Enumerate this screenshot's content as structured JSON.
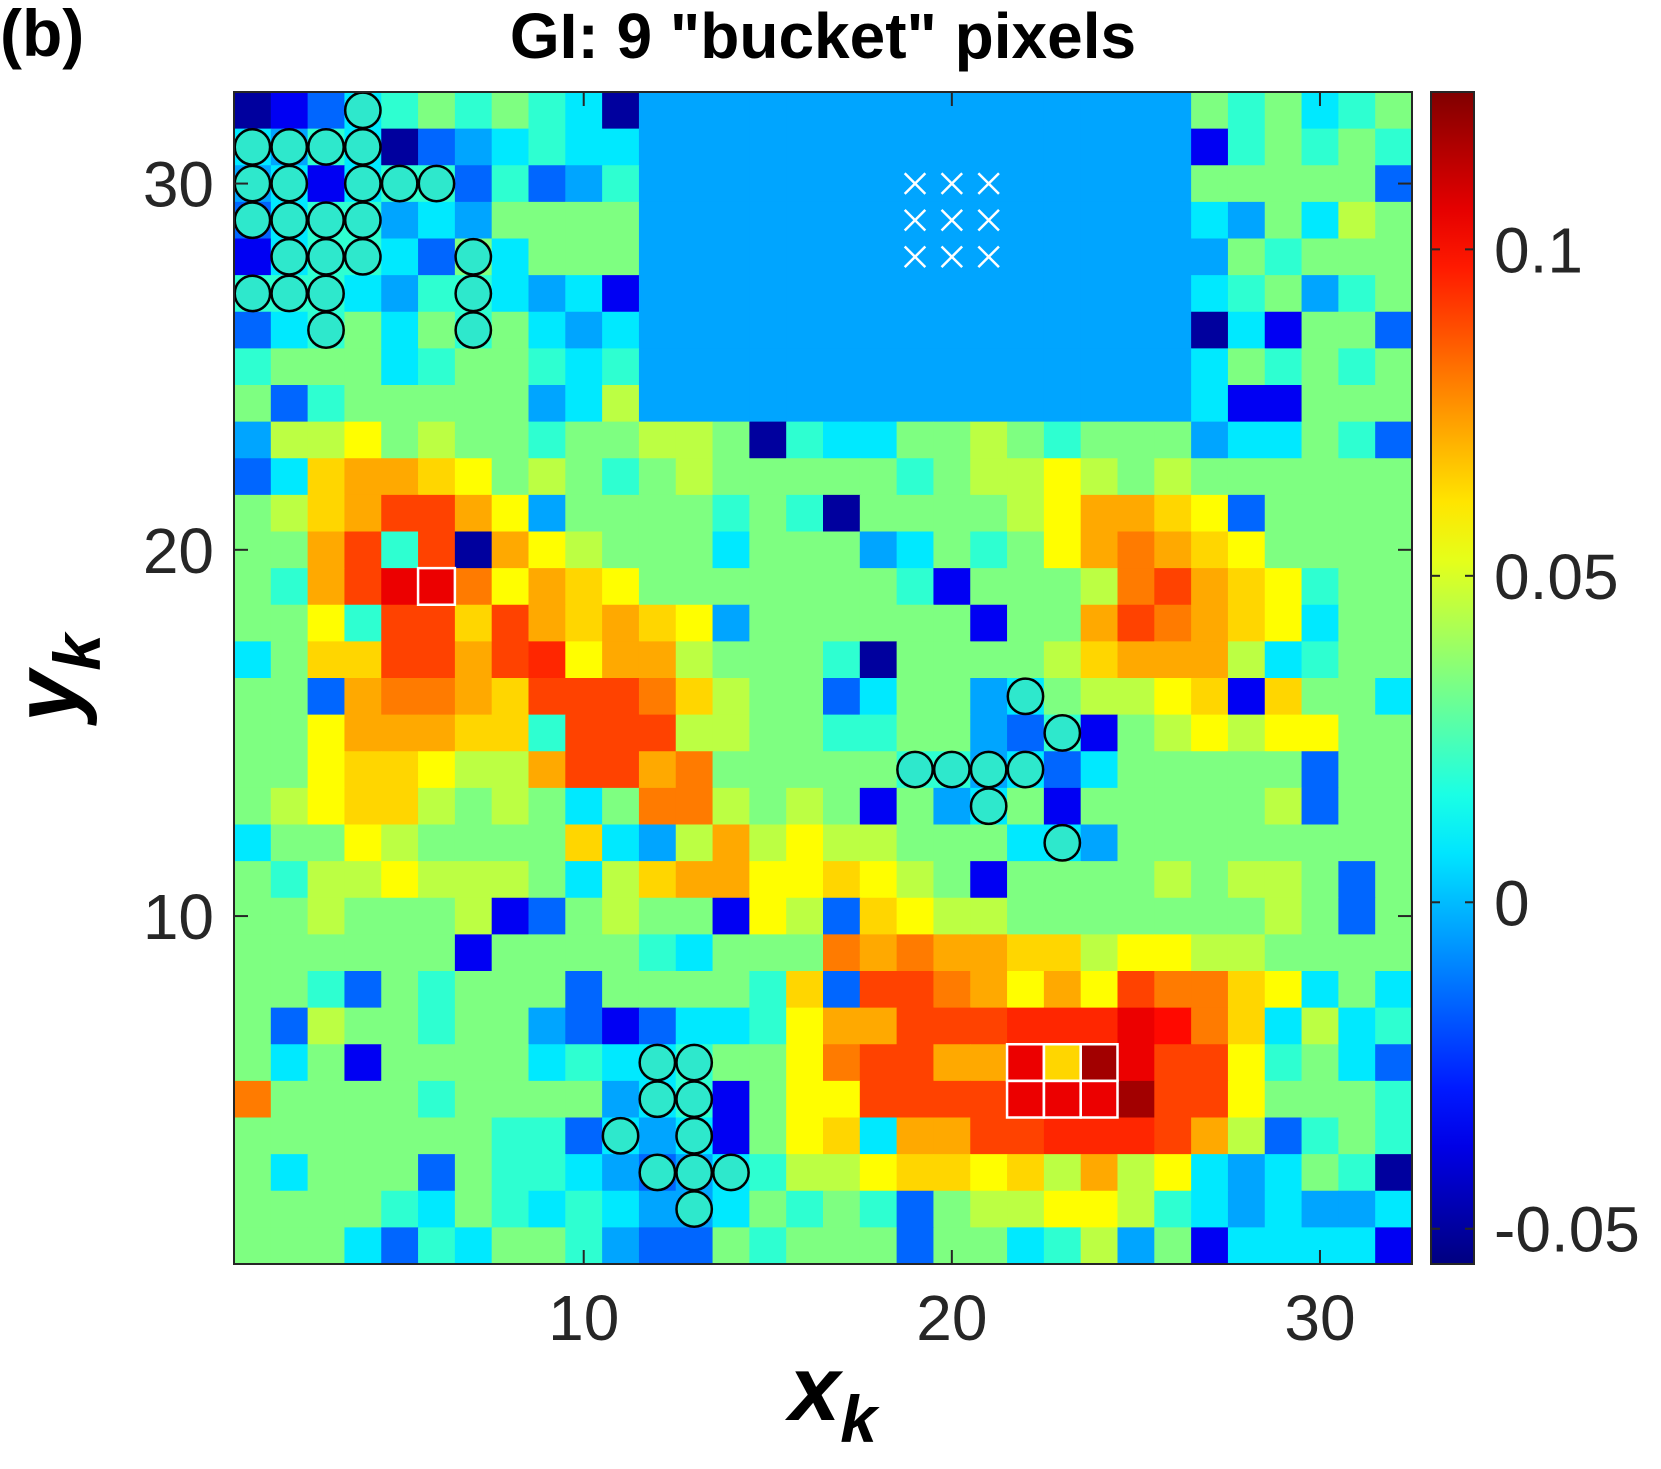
{
  "panel_label": "(b)",
  "chart_data": {
    "type": "heatmap",
    "title": "GI: 9 \"bucket\" pixels",
    "xlabel": "x",
    "xlabel_sub": "k",
    "ylabel": "y",
    "ylabel_sub": "k",
    "xlim": [
      0.5,
      32.5
    ],
    "ylim": [
      0.5,
      32.5
    ],
    "xticks": [
      10,
      20,
      30
    ],
    "yticks": [
      10,
      20,
      30
    ],
    "clim": [
      -0.0554,
      0.1241
    ],
    "cticks": [
      -0.05,
      0,
      0.05,
      0.1
    ],
    "colormap": "jet",
    "x": [
      1,
      2,
      3,
      4,
      5,
      6,
      7,
      8,
      9,
      10,
      11,
      12,
      13,
      14,
      15,
      16,
      17,
      18,
      19,
      20,
      21,
      22,
      23,
      24,
      25,
      26,
      27,
      28,
      29,
      30,
      31,
      32
    ],
    "y": [
      32,
      31,
      30,
      29,
      28,
      27,
      26,
      25,
      24,
      23,
      22,
      21,
      20,
      19,
      18,
      17,
      16,
      15,
      14,
      13,
      12,
      11,
      10,
      9,
      8,
      7,
      6,
      5,
      4,
      3,
      2,
      1
    ],
    "z": [
      [
        -0.05,
        -0.035,
        -0.015,
        0.008,
        0.02,
        0.034,
        0.02,
        0.034,
        0.02,
        0.008,
        -0.05,
        -0.004,
        -0.004,
        -0.004,
        -0.004,
        -0.004,
        -0.004,
        -0.004,
        -0.004,
        -0.004,
        -0.004,
        -0.004,
        -0.004,
        -0.004,
        -0.004,
        -0.004,
        0.034,
        0.02,
        0.034,
        0.008,
        0.02,
        0.034
      ],
      [
        0.008,
        -0.004,
        0.02,
        0.008,
        -0.05,
        -0.015,
        -0.004,
        0.008,
        0.02,
        0.008,
        0.008,
        -0.004,
        -0.004,
        -0.004,
        -0.004,
        -0.004,
        -0.004,
        -0.004,
        -0.004,
        -0.004,
        -0.004,
        -0.004,
        -0.004,
        -0.004,
        -0.004,
        -0.004,
        -0.035,
        0.02,
        0.034,
        0.02,
        0.034,
        0.02
      ],
      [
        -0.004,
        0.008,
        -0.035,
        0.008,
        0.02,
        0.02,
        -0.015,
        0.02,
        -0.015,
        -0.004,
        0.02,
        -0.004,
        -0.004,
        -0.004,
        -0.004,
        -0.004,
        -0.004,
        -0.004,
        -0.004,
        -0.004,
        -0.004,
        -0.004,
        -0.004,
        -0.004,
        -0.004,
        -0.004,
        0.034,
        0.034,
        0.034,
        0.034,
        0.034,
        -0.015
      ],
      [
        -0.015,
        0.008,
        0.02,
        0.02,
        -0.004,
        0.008,
        -0.004,
        0.034,
        0.034,
        0.034,
        0.034,
        -0.004,
        -0.004,
        -0.004,
        -0.004,
        -0.004,
        -0.004,
        -0.004,
        -0.004,
        -0.004,
        -0.004,
        -0.004,
        -0.004,
        -0.004,
        -0.004,
        -0.004,
        0.008,
        -0.004,
        0.034,
        0.008,
        0.045,
        0.034
      ],
      [
        -0.035,
        0.008,
        0.02,
        0.02,
        0.008,
        -0.015,
        0.034,
        0.008,
        0.034,
        0.034,
        0.034,
        -0.004,
        -0.004,
        -0.004,
        -0.004,
        -0.004,
        -0.004,
        -0.004,
        -0.004,
        -0.004,
        -0.004,
        -0.004,
        -0.004,
        -0.004,
        -0.004,
        -0.004,
        -0.004,
        0.034,
        0.02,
        0.034,
        0.034,
        0.034
      ],
      [
        0.02,
        0.02,
        0.02,
        0.008,
        -0.004,
        0.02,
        0.02,
        0.008,
        -0.004,
        0.008,
        -0.035,
        -0.004,
        -0.004,
        -0.004,
        -0.004,
        -0.004,
        -0.004,
        -0.004,
        -0.004,
        -0.004,
        -0.004,
        -0.004,
        -0.004,
        -0.004,
        -0.004,
        -0.004,
        0.008,
        0.02,
        0.034,
        -0.004,
        0.02,
        0.034
      ],
      [
        -0.015,
        0.008,
        0.02,
        0.034,
        0.008,
        0.034,
        0.02,
        0.034,
        0.008,
        -0.004,
        0.008,
        -0.004,
        -0.004,
        -0.004,
        -0.004,
        -0.004,
        -0.004,
        -0.004,
        -0.004,
        -0.004,
        -0.004,
        -0.004,
        -0.004,
        -0.004,
        -0.004,
        -0.004,
        -0.05,
        0.008,
        -0.035,
        0.034,
        0.034,
        -0.015
      ],
      [
        0.02,
        0.034,
        0.034,
        0.034,
        0.008,
        0.02,
        0.034,
        0.034,
        0.02,
        0.008,
        0.02,
        -0.004,
        -0.004,
        -0.004,
        -0.004,
        -0.004,
        -0.004,
        -0.004,
        -0.004,
        -0.004,
        -0.004,
        -0.004,
        -0.004,
        -0.004,
        -0.004,
        -0.004,
        0.008,
        0.034,
        0.02,
        0.034,
        0.02,
        0.034
      ],
      [
        0.034,
        -0.015,
        0.02,
        0.034,
        0.034,
        0.034,
        0.034,
        0.034,
        -0.004,
        0.008,
        0.045,
        -0.004,
        -0.004,
        -0.004,
        -0.004,
        -0.004,
        -0.004,
        -0.004,
        -0.004,
        -0.004,
        -0.004,
        -0.004,
        -0.004,
        -0.004,
        -0.004,
        -0.004,
        0.008,
        -0.035,
        -0.035,
        0.034,
        0.034,
        0.034
      ],
      [
        -0.004,
        0.045,
        0.045,
        0.057,
        0.034,
        0.045,
        0.034,
        0.034,
        0.02,
        0.034,
        0.034,
        0.045,
        0.045,
        0.034,
        -0.05,
        0.02,
        0.008,
        0.008,
        0.034,
        0.034,
        0.045,
        0.034,
        0.02,
        0.034,
        0.034,
        0.034,
        -0.004,
        0.008,
        0.008,
        0.034,
        0.02,
        -0.015
      ],
      [
        -0.015,
        0.008,
        0.064,
        0.072,
        0.072,
        0.064,
        0.057,
        0.034,
        0.045,
        0.034,
        0.02,
        0.034,
        0.045,
        0.034,
        0.034,
        0.034,
        0.034,
        0.034,
        0.02,
        0.034,
        0.045,
        0.045,
        0.057,
        0.045,
        0.034,
        0.045,
        0.034,
        0.034,
        0.034,
        0.034,
        0.034,
        0.034
      ],
      [
        0.034,
        0.045,
        0.064,
        0.072,
        0.09,
        0.09,
        0.072,
        0.057,
        -0.004,
        0.034,
        0.034,
        0.034,
        0.034,
        0.02,
        0.034,
        0.02,
        -0.05,
        0.034,
        0.034,
        0.034,
        0.034,
        0.045,
        0.057,
        0.072,
        0.072,
        0.064,
        0.057,
        -0.015,
        0.034,
        0.034,
        0.034,
        0.034
      ],
      [
        0.034,
        0.034,
        0.072,
        0.09,
        0.02,
        0.09,
        -0.05,
        0.072,
        0.057,
        0.045,
        0.034,
        0.034,
        0.034,
        0.008,
        0.034,
        0.034,
        0.034,
        -0.004,
        0.008,
        0.034,
        0.02,
        0.034,
        0.057,
        0.072,
        0.08,
        0.072,
        0.064,
        0.057,
        0.034,
        0.034,
        0.034,
        0.034
      ],
      [
        0.034,
        0.02,
        0.072,
        0.09,
        0.105,
        0.105,
        0.08,
        0.057,
        0.072,
        0.064,
        0.057,
        0.034,
        0.034,
        0.034,
        0.034,
        0.034,
        0.034,
        0.034,
        0.02,
        -0.035,
        0.034,
        0.034,
        0.034,
        0.045,
        0.08,
        0.09,
        0.072,
        0.064,
        0.057,
        0.02,
        0.034,
        0.034
      ],
      [
        0.034,
        0.034,
        0.057,
        0.02,
        0.09,
        0.09,
        0.064,
        0.09,
        0.072,
        0.064,
        0.072,
        0.064,
        0.057,
        -0.004,
        0.034,
        0.034,
        0.034,
        0.034,
        0.034,
        0.034,
        -0.035,
        0.034,
        0.034,
        0.072,
        0.09,
        0.08,
        0.072,
        0.064,
        0.057,
        0.008,
        0.034,
        0.034
      ],
      [
        0.008,
        0.034,
        0.064,
        0.064,
        0.09,
        0.09,
        0.072,
        0.09,
        0.095,
        0.057,
        0.072,
        0.072,
        0.045,
        0.034,
        0.034,
        0.034,
        0.02,
        -0.05,
        0.034,
        0.034,
        0.034,
        0.034,
        0.045,
        0.064,
        0.072,
        0.072,
        0.072,
        0.045,
        0.008,
        0.02,
        0.034,
        0.034
      ],
      [
        0.034,
        0.034,
        -0.015,
        0.072,
        0.08,
        0.08,
        0.072,
        0.064,
        0.09,
        0.09,
        0.09,
        0.08,
        0.064,
        0.045,
        0.034,
        0.034,
        -0.015,
        0.008,
        0.034,
        0.034,
        -0.004,
        0.008,
        0.034,
        0.045,
        0.045,
        0.057,
        0.064,
        -0.035,
        0.064,
        0.034,
        0.034,
        0.008
      ],
      [
        0.034,
        0.034,
        0.057,
        0.072,
        0.072,
        0.072,
        0.064,
        0.064,
        0.02,
        0.09,
        0.09,
        0.09,
        0.045,
        0.045,
        0.034,
        0.034,
        0.02,
        0.02,
        0.034,
        0.034,
        -0.004,
        -0.015,
        0.02,
        -0.035,
        0.034,
        0.045,
        0.057,
        0.045,
        0.057,
        0.057,
        0.034,
        0.034
      ],
      [
        0.034,
        0.034,
        0.057,
        0.064,
        0.064,
        0.057,
        0.045,
        0.045,
        0.072,
        0.09,
        0.09,
        0.072,
        0.08,
        0.034,
        0.034,
        0.034,
        0.034,
        0.034,
        0.02,
        0.02,
        -0.004,
        0.008,
        -0.015,
        0.008,
        0.034,
        0.034,
        0.034,
        0.034,
        0.034,
        -0.015,
        0.034,
        0.034
      ],
      [
        0.034,
        0.045,
        0.057,
        0.064,
        0.064,
        0.045,
        0.034,
        0.045,
        0.034,
        0.008,
        0.034,
        0.08,
        0.08,
        0.045,
        0.034,
        0.045,
        0.034,
        -0.035,
        0.034,
        -0.004,
        0.008,
        0.034,
        -0.035,
        0.034,
        0.034,
        0.034,
        0.034,
        0.034,
        0.045,
        -0.015,
        0.034,
        0.034
      ],
      [
        0.008,
        0.034,
        0.034,
        0.057,
        0.045,
        0.034,
        0.034,
        0.034,
        0.034,
        0.064,
        0.008,
        -0.004,
        0.045,
        0.072,
        0.045,
        0.057,
        0.045,
        0.045,
        0.034,
        0.034,
        0.034,
        0.008,
        0.008,
        -0.004,
        0.034,
        0.034,
        0.034,
        0.034,
        0.034,
        0.034,
        0.034,
        0.034
      ],
      [
        0.034,
        0.02,
        0.045,
        0.045,
        0.057,
        0.045,
        0.045,
        0.045,
        0.034,
        0.008,
        0.045,
        0.064,
        0.072,
        0.072,
        0.057,
        0.057,
        0.064,
        0.057,
        0.045,
        0.034,
        -0.035,
        0.034,
        0.034,
        0.034,
        0.034,
        0.045,
        0.034,
        0.045,
        0.045,
        0.034,
        -0.015,
        0.034
      ],
      [
        0.034,
        0.034,
        0.045,
        0.034,
        0.034,
        0.034,
        0.045,
        -0.035,
        -0.015,
        0.034,
        0.045,
        0.034,
        0.034,
        -0.035,
        0.057,
        0.045,
        -0.015,
        0.064,
        0.057,
        0.045,
        0.045,
        0.034,
        0.034,
        0.034,
        0.034,
        0.034,
        0.034,
        0.034,
        0.045,
        0.034,
        -0.015,
        0.034
      ],
      [
        0.034,
        0.034,
        0.034,
        0.034,
        0.034,
        0.034,
        -0.035,
        0.034,
        0.034,
        0.034,
        0.034,
        0.02,
        0.008,
        0.034,
        0.034,
        0.034,
        0.08,
        0.072,
        0.08,
        0.072,
        0.072,
        0.064,
        0.064,
        0.045,
        0.057,
        0.057,
        0.045,
        0.045,
        0.034,
        0.034,
        0.034,
        0.034
      ],
      [
        0.034,
        0.034,
        0.02,
        -0.015,
        0.034,
        0.02,
        0.034,
        0.034,
        0.034,
        -0.015,
        0.034,
        0.034,
        0.034,
        0.034,
        0.02,
        0.064,
        -0.015,
        0.09,
        0.09,
        0.08,
        0.072,
        0.057,
        0.072,
        0.057,
        0.09,
        0.08,
        0.08,
        0.064,
        0.057,
        0.008,
        0.034,
        0.008
      ],
      [
        0.034,
        -0.015,
        0.045,
        0.034,
        0.034,
        0.02,
        0.034,
        0.034,
        -0.004,
        -0.015,
        -0.035,
        -0.015,
        0.008,
        0.008,
        0.02,
        0.057,
        0.072,
        0.072,
        0.09,
        0.09,
        0.09,
        0.095,
        0.095,
        0.095,
        0.105,
        0.1,
        0.08,
        0.064,
        0.008,
        0.045,
        0.008,
        0.02
      ],
      [
        0.034,
        0.008,
        0.034,
        -0.035,
        0.034,
        0.034,
        0.034,
        0.034,
        0.008,
        0.02,
        0.008,
        0.008,
        0.02,
        0.034,
        0.034,
        0.057,
        0.08,
        0.09,
        0.09,
        0.072,
        0.072,
        0.105,
        0.064,
        0.118,
        0.105,
        0.09,
        0.09,
        0.057,
        0.02,
        0.034,
        0.008,
        -0.015
      ],
      [
        0.08,
        0.034,
        0.034,
        0.034,
        0.034,
        0.02,
        0.034,
        0.034,
        0.034,
        0.034,
        -0.004,
        0.008,
        0.02,
        -0.035,
        0.034,
        0.057,
        0.057,
        0.09,
        0.09,
        0.09,
        0.09,
        0.105,
        0.105,
        0.105,
        0.118,
        0.09,
        0.09,
        0.057,
        0.034,
        0.034,
        0.034,
        0.02
      ],
      [
        0.034,
        0.034,
        0.034,
        0.034,
        0.034,
        0.034,
        0.034,
        0.02,
        0.02,
        -0.015,
        0.008,
        -0.004,
        0.008,
        -0.035,
        0.034,
        0.057,
        0.064,
        0.008,
        0.072,
        0.072,
        0.09,
        0.09,
        0.095,
        0.095,
        0.095,
        0.09,
        0.072,
        0.045,
        -0.015,
        0.02,
        0.034,
        0.02
      ],
      [
        0.034,
        0.008,
        0.034,
        0.034,
        0.034,
        -0.015,
        0.034,
        0.02,
        0.02,
        0.008,
        -0.004,
        -0.015,
        -0.004,
        0.008,
        0.02,
        0.045,
        0.045,
        0.057,
        0.064,
        0.064,
        0.057,
        0.064,
        0.045,
        0.072,
        0.045,
        0.057,
        0.008,
        -0.004,
        0.008,
        0.034,
        0.02,
        -0.05
      ],
      [
        0.034,
        0.034,
        0.034,
        0.034,
        0.02,
        0.008,
        0.034,
        0.02,
        0.008,
        0.02,
        0.008,
        -0.004,
        -0.004,
        0.008,
        0.034,
        0.02,
        0.034,
        0.02,
        -0.015,
        0.034,
        0.045,
        0.045,
        0.057,
        0.057,
        0.045,
        0.02,
        0.008,
        -0.004,
        0.008,
        -0.004,
        -0.004,
        0.008
      ],
      [
        0.034,
        0.034,
        0.034,
        0.008,
        -0.015,
        0.02,
        0.008,
        0.034,
        0.034,
        0.02,
        -0.004,
        -0.015,
        -0.015,
        0.034,
        0.02,
        0.034,
        0.034,
        0.034,
        -0.015,
        0.034,
        0.034,
        0.008,
        0.02,
        0.045,
        -0.004,
        0.034,
        -0.035,
        0.008,
        0.008,
        0.008,
        0.008,
        -0.035
      ]
    ],
    "circles": [
      [
        4,
        32
      ],
      [
        1,
        31
      ],
      [
        2,
        31
      ],
      [
        3,
        31
      ],
      [
        4,
        31
      ],
      [
        1,
        30
      ],
      [
        2,
        30
      ],
      [
        4,
        30
      ],
      [
        5,
        30
      ],
      [
        6,
        30
      ],
      [
        1,
        29
      ],
      [
        2,
        29
      ],
      [
        3,
        29
      ],
      [
        4,
        29
      ],
      [
        2,
        28
      ],
      [
        3,
        28
      ],
      [
        4,
        28
      ],
      [
        7,
        28
      ],
      [
        1,
        27
      ],
      [
        2,
        27
      ],
      [
        3,
        27
      ],
      [
        7,
        27
      ],
      [
        3,
        26
      ],
      [
        7,
        26
      ],
      [
        22,
        16
      ],
      [
        23,
        15
      ],
      [
        19,
        14
      ],
      [
        20,
        14
      ],
      [
        21,
        14
      ],
      [
        22,
        14
      ],
      [
        21,
        13
      ],
      [
        23,
        12
      ],
      [
        12,
        6
      ],
      [
        13,
        6
      ],
      [
        12,
        5
      ],
      [
        13,
        5
      ],
      [
        11,
        4
      ],
      [
        13,
        4
      ],
      [
        12,
        3
      ],
      [
        13,
        3
      ],
      [
        14,
        3
      ],
      [
        13,
        2
      ]
    ],
    "circle_color": "#2ee8cc",
    "crosses": [
      [
        19,
        30
      ],
      [
        20,
        30
      ],
      [
        21,
        30
      ],
      [
        19,
        29
      ],
      [
        20,
        29
      ],
      [
        21,
        29
      ],
      [
        19,
        28
      ],
      [
        20,
        28
      ],
      [
        21,
        28
      ]
    ],
    "boxes": [
      [
        6,
        19
      ],
      [
        22,
        6
      ],
      [
        23,
        6
      ],
      [
        24,
        6
      ],
      [
        22,
        5
      ],
      [
        23,
        5
      ],
      [
        24,
        5
      ]
    ],
    "marker_color": "#ffffff"
  }
}
